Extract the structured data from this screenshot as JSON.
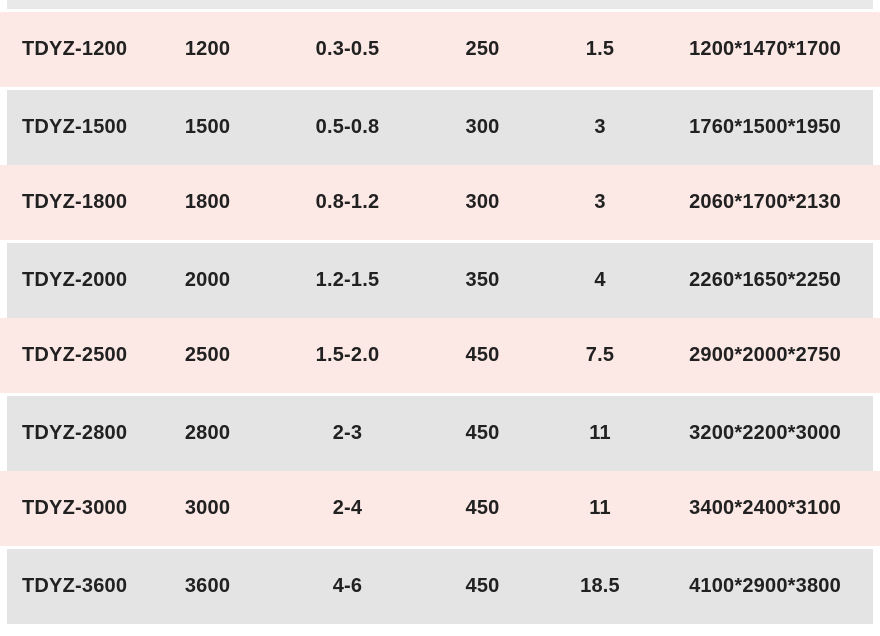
{
  "colors": {
    "row_pink": "#fce8e5",
    "row_gray": "#e4e4e4",
    "top_strip": "#e9e9e9",
    "text": "#212121",
    "background": "#ffffff"
  },
  "table": {
    "rows": [
      {
        "cells": [
          "TDYZ-1200",
          "1200",
          "0.3-0.5",
          "250",
          "1.5",
          "1200*1470*1700"
        ]
      },
      {
        "cells": [
          "TDYZ-1500",
          "1500",
          "0.5-0.8",
          "300",
          "3",
          "1760*1500*1950"
        ]
      },
      {
        "cells": [
          "TDYZ-1800",
          "1800",
          "0.8-1.2",
          "300",
          "3",
          "2060*1700*2130"
        ]
      },
      {
        "cells": [
          "TDYZ-2000",
          "2000",
          "1.2-1.5",
          "350",
          "4",
          "2260*1650*2250"
        ]
      },
      {
        "cells": [
          "TDYZ-2500",
          "2500",
          "1.5-2.0",
          "450",
          "7.5",
          "2900*2000*2750"
        ]
      },
      {
        "cells": [
          "TDYZ-2800",
          "2800",
          "2-3",
          "450",
          "11",
          "3200*2200*3000"
        ]
      },
      {
        "cells": [
          "TDYZ-3000",
          "3000",
          "2-4",
          "450",
          "11",
          "3400*2400*3100"
        ]
      },
      {
        "cells": [
          "TDYZ-3600",
          "3600",
          "4-6",
          "450",
          "18.5",
          "4100*2900*3800"
        ]
      }
    ]
  }
}
